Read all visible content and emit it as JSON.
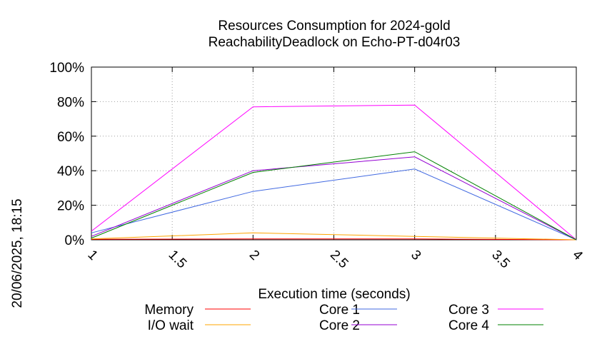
{
  "chart_data": {
    "type": "line",
    "title": "Resources Consumption for 2024-gold",
    "subtitle": "ReachabilityDeadlock on Echo-PT-d04r03",
    "xlabel": "Execution time (seconds)",
    "ylabel": "",
    "side_label": "20/06/2025, 18:15",
    "xlim": [
      1,
      4
    ],
    "ylim": [
      0,
      100
    ],
    "x_ticks": [
      1,
      1.5,
      2,
      2.5,
      3,
      3.5,
      4
    ],
    "x_tick_labels": [
      "1",
      "1.5",
      "2",
      "2.5",
      "3",
      "3.5",
      "4"
    ],
    "y_ticks": [
      0,
      20,
      40,
      60,
      80,
      100
    ],
    "y_tick_labels": [
      "0%",
      "20%",
      "40%",
      "60%",
      "80%",
      "100%"
    ],
    "grid": true,
    "legend_position": "bottom",
    "series": [
      {
        "name": "Memory",
        "color": "#ff0000",
        "x": [
          1,
          2,
          3,
          4
        ],
        "y": [
          0.3,
          0.5,
          0.5,
          0
        ]
      },
      {
        "name": "I/O wait",
        "color": "#ffa500",
        "x": [
          1,
          2,
          3,
          4
        ],
        "y": [
          0.5,
          4,
          2,
          0
        ]
      },
      {
        "name": "Core 1",
        "color": "#4169e1",
        "x": [
          1,
          2,
          3,
          4
        ],
        "y": [
          4,
          28,
          41,
          0
        ]
      },
      {
        "name": "Core 2",
        "color": "#9400d3",
        "x": [
          1,
          2,
          3,
          4
        ],
        "y": [
          2,
          40,
          48,
          0
        ]
      },
      {
        "name": "Core 3",
        "color": "#ff00ff",
        "x": [
          1,
          2,
          3,
          4
        ],
        "y": [
          5,
          77,
          78,
          0
        ]
      },
      {
        "name": "Core 4",
        "color": "#008000",
        "x": [
          1,
          2,
          3,
          4
        ],
        "y": [
          1,
          39,
          51,
          0
        ]
      }
    ]
  }
}
